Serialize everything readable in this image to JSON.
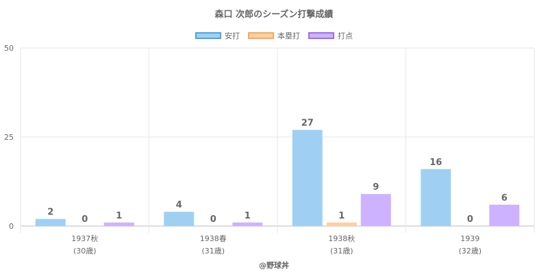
{
  "chart_data": {
    "type": "bar",
    "title": "森口 次郎のシーズン打撃成績",
    "categories": [
      "1937秋",
      "1938春",
      "1938秋",
      "1939"
    ],
    "category_sublabels": [
      "(30歳)",
      "(31歳)",
      "(31歳)",
      "(32歳)"
    ],
    "series": [
      {
        "name": "安打",
        "values": [
          2,
          4,
          27,
          16
        ],
        "color": "#9fd0f4",
        "border": "#4ea3e0"
      },
      {
        "name": "本塁打",
        "values": [
          0,
          0,
          1,
          0
        ],
        "color": "#fdd0a2",
        "border": "#f7a85a"
      },
      {
        "name": "打点",
        "values": [
          1,
          1,
          9,
          6
        ],
        "color": "#cdb3ff",
        "border": "#9c6cf0"
      }
    ],
    "ylim": [
      0,
      50
    ],
    "yticks": [
      0,
      25,
      50
    ],
    "grid": true,
    "legend": "top",
    "data_labels": true
  },
  "footer": "@野球丼"
}
